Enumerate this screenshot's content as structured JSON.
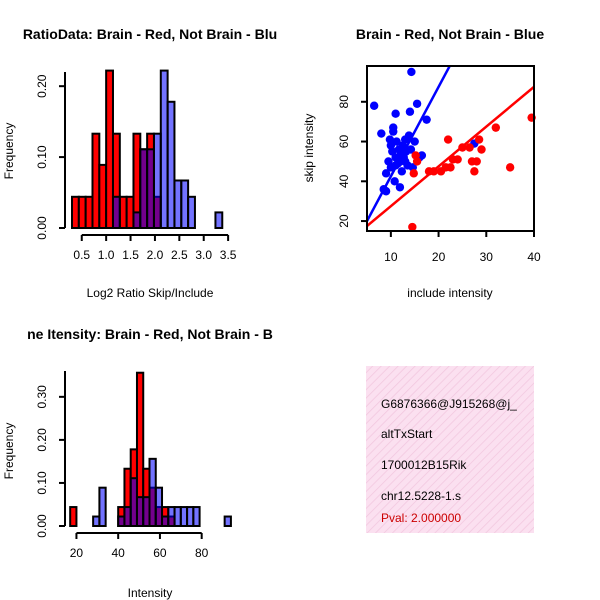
{
  "chart_data": [
    {
      "type": "histogram",
      "title": "RatioData: Brain - Red, Not Brain - Blu",
      "xlabel": "Log2 Ratio Skip/Include",
      "ylabel": "Frequency",
      "xlim": [
        0.3,
        3.6
      ],
      "ylim": [
        0,
        0.22
      ],
      "xticks": [
        "0.5",
        "1.0",
        "1.5",
        "2.0",
        "2.5",
        "3.0",
        "3.5"
      ],
      "xtick_values": [
        0.5,
        1.0,
        1.5,
        2.0,
        2.5,
        3.0,
        3.5
      ],
      "yticks": [
        "0.00",
        "0.10",
        "0.20"
      ],
      "ytick_values": [
        0.0,
        0.1,
        0.2
      ],
      "series": [
        {
          "name": "Brain",
          "color": "#ff0000",
          "bins": [
            [
              0.3,
              0.44,
              0.044
            ],
            [
              0.44,
              0.58,
              0.044
            ],
            [
              0.58,
              0.72,
              0.044
            ],
            [
              0.72,
              0.86,
              0.133
            ],
            [
              0.86,
              1.0,
              0.089
            ],
            [
              1.0,
              1.14,
              0.222
            ],
            [
              1.14,
              1.28,
              0.133
            ],
            [
              1.28,
              1.42,
              0.044
            ],
            [
              1.42,
              1.56,
              0.044
            ],
            [
              1.56,
              1.7,
              0.133
            ],
            [
              1.7,
              1.84,
              0.111
            ],
            [
              1.84,
              1.98,
              0.133
            ],
            [
              1.98,
              2.12,
              0.044
            ]
          ]
        },
        {
          "name": "Not Brain",
          "color": "#0000ff",
          "bins": [
            [
              1.14,
              1.28,
              0.044
            ],
            [
              1.56,
              1.7,
              0.022
            ],
            [
              1.7,
              1.84,
              0.111
            ],
            [
              1.84,
              1.98,
              0.111
            ],
            [
              1.98,
              2.12,
              0.133
            ],
            [
              2.12,
              2.26,
              0.222
            ],
            [
              2.26,
              2.4,
              0.178
            ],
            [
              2.4,
              2.54,
              0.067
            ],
            [
              2.54,
              2.68,
              0.067
            ],
            [
              2.68,
              2.82,
              0.044
            ],
            [
              3.24,
              3.38,
              0.022
            ]
          ]
        }
      ]
    },
    {
      "type": "scatter",
      "title": "Brain - Red, Not Brain - Blue",
      "xlabel": "include intensity",
      "ylabel": "skip intensity",
      "xlim": [
        5,
        40
      ],
      "ylim": [
        15,
        98
      ],
      "xticks": [
        "10",
        "20",
        "30",
        "40"
      ],
      "xtick_values": [
        10,
        20,
        30,
        40
      ],
      "yticks": [
        "20",
        "40",
        "60",
        "80"
      ],
      "ytick_values": [
        20,
        40,
        60,
        80
      ],
      "series": [
        {
          "name": "Not Brain",
          "color": "#0000ff",
          "fit": {
            "intercept": -2.5,
            "slope": 4.5
          },
          "points": [
            [
              6.5,
              78
            ],
            [
              8.5,
              36
            ],
            [
              9,
              44
            ],
            [
              9,
              35
            ],
            [
              9.5,
              50
            ],
            [
              10,
              58
            ],
            [
              10,
              47
            ],
            [
              10.3,
              55
            ],
            [
              10.5,
              67
            ],
            [
              10.5,
              65
            ],
            [
              11,
              48
            ],
            [
              11,
              74
            ],
            [
              11,
              52
            ],
            [
              11.2,
              60
            ],
            [
              11.5,
              49
            ],
            [
              11.7,
              56
            ],
            [
              11.9,
              37
            ],
            [
              12,
              50
            ],
            [
              12,
              53
            ],
            [
              12.3,
              45
            ],
            [
              12.5,
              58
            ],
            [
              12.7,
              52
            ],
            [
              13,
              50
            ],
            [
              13,
              61
            ],
            [
              13.2,
              55
            ],
            [
              13.5,
              48
            ],
            [
              13.8,
              63
            ],
            [
              14,
              75
            ],
            [
              14.2,
              56
            ],
            [
              14.3,
              95
            ],
            [
              14.6,
              47
            ],
            [
              15,
              60
            ],
            [
              15.5,
              79
            ],
            [
              16,
              52
            ],
            [
              17.5,
              71
            ],
            [
              16.5,
              53
            ],
            [
              27.5,
              59
            ],
            [
              8,
              64
            ],
            [
              9.8,
              61
            ],
            [
              10.8,
              40
            ]
          ]
        },
        {
          "name": "Brain",
          "color": "#ff0000",
          "fit": {
            "intercept": 7.5,
            "slope": 2.0
          },
          "points": [
            [
              14.5,
              17
            ],
            [
              14.8,
              44
            ],
            [
              15.2,
              53
            ],
            [
              15.5,
              50
            ],
            [
              18,
              45
            ],
            [
              19,
              45
            ],
            [
              20.5,
              45
            ],
            [
              21.5,
              47
            ],
            [
              22,
              61
            ],
            [
              22.5,
              47
            ],
            [
              23,
              51
            ],
            [
              24,
              51
            ],
            [
              25,
              57
            ],
            [
              26.5,
              57
            ],
            [
              27,
              50
            ],
            [
              27.5,
              45
            ],
            [
              28,
              50
            ],
            [
              28.5,
              61
            ],
            [
              29,
              56
            ],
            [
              32,
              67
            ],
            [
              35,
              47
            ],
            [
              39.5,
              72
            ]
          ]
        }
      ]
    },
    {
      "type": "histogram",
      "title": "ne Itensity: Brain - Red, Not Brain - B",
      "xlabel": "Intensity",
      "ylabel": "Frequency",
      "xlim": [
        15,
        95
      ],
      "ylim": [
        0,
        0.36
      ],
      "xticks": [
        "20",
        "40",
        "60",
        "80"
      ],
      "xtick_values": [
        20,
        40,
        60,
        80
      ],
      "yticks": [
        "0.00",
        "0.10",
        "0.20",
        "0.30"
      ],
      "ytick_values": [
        0.0,
        0.1,
        0.2,
        0.3
      ],
      "series": [
        {
          "name": "Brain",
          "color": "#ff0000",
          "bins": [
            [
              17,
              20,
              0.044
            ],
            [
              40,
              43,
              0.044
            ],
            [
              43,
              46,
              0.133
            ],
            [
              46,
              49,
              0.178
            ],
            [
              49,
              52,
              0.356
            ],
            [
              52,
              55,
              0.133
            ],
            [
              55,
              58,
              0.089
            ],
            [
              58,
              61,
              0.044
            ],
            [
              61,
              64,
              0.044
            ],
            [
              64,
              67,
              0.022
            ]
          ]
        },
        {
          "name": "Not Brain",
          "color": "#0000ff",
          "bins": [
            [
              28,
              31,
              0.022
            ],
            [
              31,
              34,
              0.089
            ],
            [
              40,
              43,
              0.022
            ],
            [
              43,
              46,
              0.044
            ],
            [
              46,
              49,
              0.111
            ],
            [
              49,
              52,
              0.067
            ],
            [
              52,
              55,
              0.067
            ],
            [
              55,
              58,
              0.156
            ],
            [
              58,
              61,
              0.089
            ],
            [
              61,
              64,
              0.022
            ],
            [
              64,
              67,
              0.044
            ],
            [
              67,
              70,
              0.044
            ],
            [
              70,
              73,
              0.044
            ],
            [
              73,
              76,
              0.044
            ],
            [
              76,
              79,
              0.044
            ],
            [
              91,
              94,
              0.022
            ]
          ]
        }
      ]
    }
  ],
  "info_panel": {
    "bg_color": "#fbe0f0",
    "line1": "G6876366@J915268@j_",
    "line2": "altTxStart",
    "line3": "1700012B15Rik",
    "line4": "chr12.5228-1.s",
    "pval": "Pval: 2.000000",
    "pval_color": "#cc0000"
  }
}
